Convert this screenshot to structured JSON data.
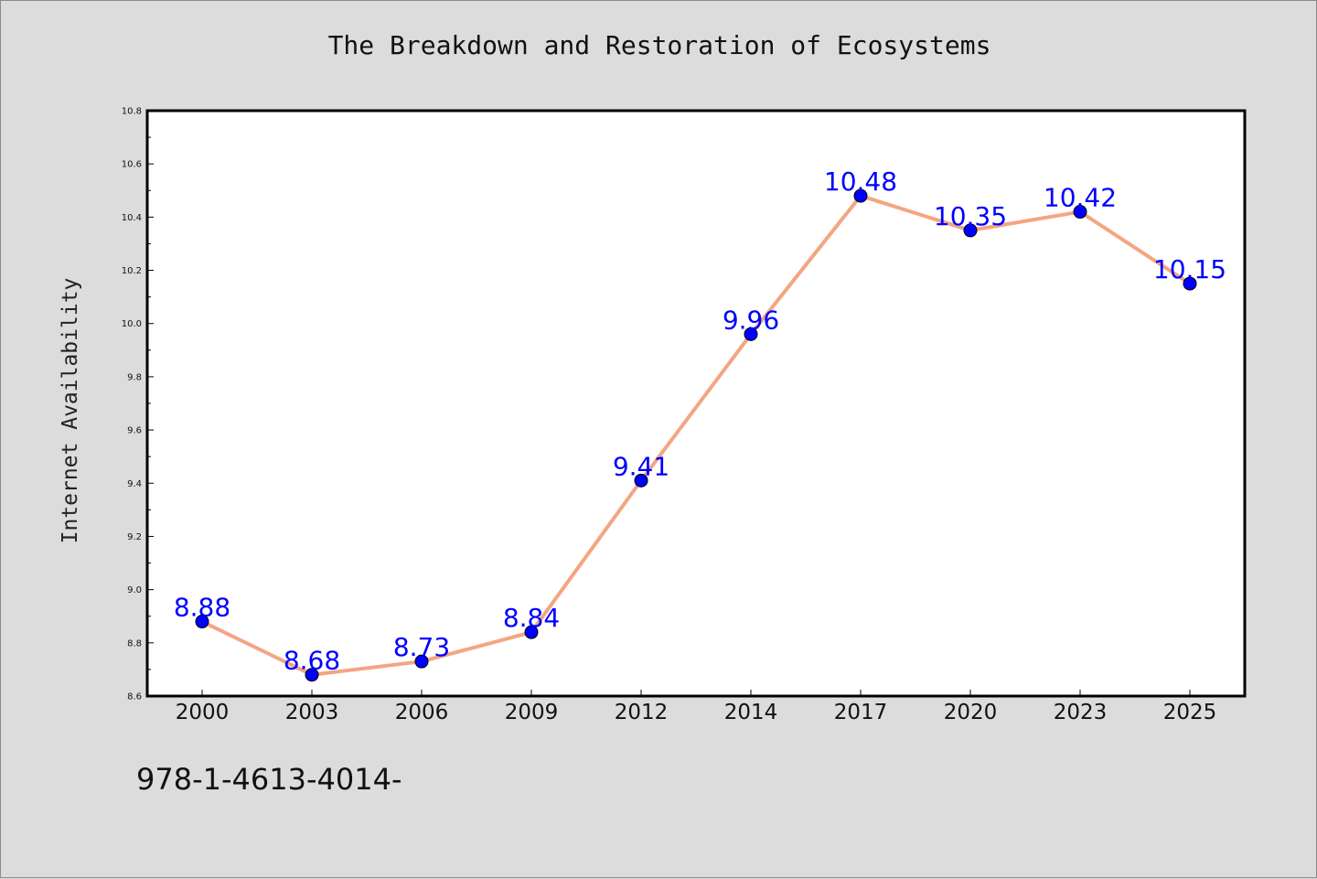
{
  "footer_text": "978-1-4613-4014-",
  "chart_data": {
    "type": "line",
    "title": "The Breakdown and Restoration of Ecosystems",
    "xlabel": "",
    "ylabel": "Internet Availability",
    "categories": [
      "2000",
      "2003",
      "2006",
      "2009",
      "2012",
      "2014",
      "2017",
      "2020",
      "2023",
      "2025"
    ],
    "values": [
      8.88,
      8.68,
      8.73,
      8.84,
      9.41,
      9.96,
      10.48,
      10.35,
      10.42,
      10.15
    ],
    "data_labels": [
      "8.88",
      "8.68",
      "8.73",
      "8.84",
      "9.41",
      "9.96",
      "10.48",
      "10.35",
      "10.42",
      "10.15"
    ],
    "ylim": [
      8.6,
      10.8
    ],
    "yticks": [
      "8.6",
      "8.8",
      "9.0",
      "9.2",
      "9.4",
      "9.6",
      "9.8",
      "10.0",
      "10.2",
      "10.4",
      "10.6",
      "10.8"
    ],
    "grid": false,
    "legend": "none",
    "colors": {
      "line": "#f4a582",
      "marker": "#0000ff",
      "label": "#0000ff",
      "plot_background": "#ffffff",
      "page_background": "#dcdcdc"
    }
  }
}
